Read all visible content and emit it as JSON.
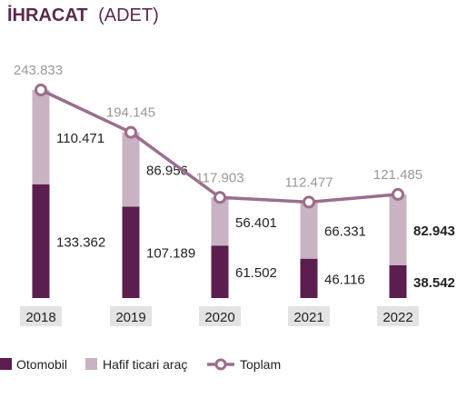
{
  "chart_data": {
    "type": "bar",
    "title": "İHRACAT",
    "subtitle": "(ADET)",
    "categories": [
      "2018",
      "2019",
      "2020",
      "2021",
      "2022"
    ],
    "stacked": true,
    "series": [
      {
        "name": "Otomobil",
        "values": [
          133362,
          107189,
          61502,
          46116,
          38542
        ],
        "labels": [
          "133.362",
          "107.189",
          "61.502",
          "46.116",
          "38.542"
        ],
        "color": "#5c1e4e"
      },
      {
        "name": "Hafif ticari araç",
        "values": [
          110471,
          86956,
          56401,
          66331,
          82943
        ],
        "labels": [
          "110.471",
          "86.956",
          "56.401",
          "66.331",
          "82.943"
        ],
        "color": "#c9b2c2"
      }
    ],
    "total": {
      "name": "Toplam",
      "type": "line",
      "values": [
        243833,
        194145,
        117903,
        112477,
        121485
      ],
      "labels": [
        "243.833",
        "194.145",
        "117.903",
        "112.477",
        "121.485"
      ],
      "color": "#9a6e8c"
    },
    "bold_labels_for": [
      "2022"
    ],
    "legend_position": "bottom-left",
    "grid": false,
    "category_box_color": "#e3e3e3",
    "total_label_color": "#999999"
  }
}
